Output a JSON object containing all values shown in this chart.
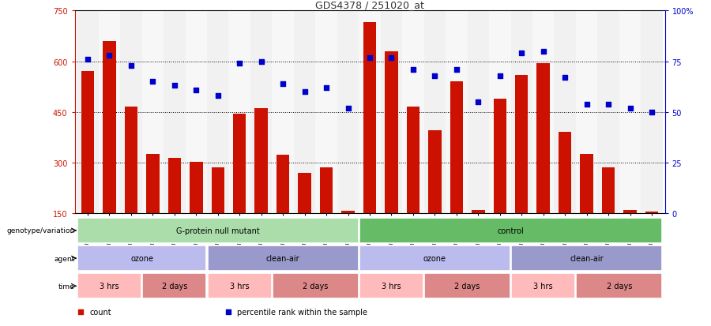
{
  "title": "GDS4378 / 251020_at",
  "samples": [
    "GSM852932",
    "GSM852933",
    "GSM852934",
    "GSM852946",
    "GSM852947",
    "GSM852948",
    "GSM852949",
    "GSM852929",
    "GSM852930",
    "GSM852931",
    "GSM852943",
    "GSM852944",
    "GSM852945",
    "GSM852926",
    "GSM852927",
    "GSM852928",
    "GSM852939",
    "GSM852940",
    "GSM852941",
    "GSM852942",
    "GSM852923",
    "GSM852924",
    "GSM852925",
    "GSM852935",
    "GSM852936",
    "GSM852937",
    "GSM852938"
  ],
  "counts": [
    570,
    660,
    465,
    325,
    315,
    303,
    285,
    445,
    462,
    323,
    270,
    285,
    157,
    715,
    630,
    465,
    395,
    540,
    160,
    490,
    560,
    595,
    390,
    325,
    285,
    160,
    155
  ],
  "percentiles": [
    76,
    78,
    73,
    65,
    63,
    61,
    58,
    74,
    75,
    64,
    60,
    62,
    52,
    77,
    77,
    71,
    68,
    71,
    55,
    68,
    79,
    80,
    67,
    54,
    54,
    52,
    50
  ],
  "ymin": 150,
  "ymax": 750,
  "yticks": [
    150,
    300,
    450,
    600,
    750
  ],
  "pct_yticks": [
    0,
    25,
    50,
    75,
    100
  ],
  "bar_color": "#cc1100",
  "dot_color": "#0000cc",
  "background_color": "#ffffff",
  "title_color": "#333333",
  "genotype_groups": [
    {
      "label": "G-protein null mutant",
      "start": 0,
      "end": 13,
      "color": "#aaddaa"
    },
    {
      "label": "control",
      "start": 13,
      "end": 27,
      "color": "#66bb66"
    }
  ],
  "agent_groups": [
    {
      "label": "ozone",
      "start": 0,
      "end": 6,
      "color": "#bbbbee"
    },
    {
      "label": "clean-air",
      "start": 6,
      "end": 13,
      "color": "#9999cc"
    },
    {
      "label": "ozone",
      "start": 13,
      "end": 20,
      "color": "#bbbbee"
    },
    {
      "label": "clean-air",
      "start": 20,
      "end": 27,
      "color": "#9999cc"
    }
  ],
  "time_groups": [
    {
      "label": "3 hrs",
      "start": 0,
      "end": 3,
      "color": "#ffbbbb"
    },
    {
      "label": "2 days",
      "start": 3,
      "end": 6,
      "color": "#dd8888"
    },
    {
      "label": "3 hrs",
      "start": 6,
      "end": 9,
      "color": "#ffbbbb"
    },
    {
      "label": "2 days",
      "start": 9,
      "end": 13,
      "color": "#dd8888"
    },
    {
      "label": "3 hrs",
      "start": 13,
      "end": 16,
      "color": "#ffbbbb"
    },
    {
      "label": "2 days",
      "start": 16,
      "end": 20,
      "color": "#dd8888"
    },
    {
      "label": "3 hrs",
      "start": 20,
      "end": 23,
      "color": "#ffbbbb"
    },
    {
      "label": "2 days",
      "start": 23,
      "end": 27,
      "color": "#dd8888"
    }
  ],
  "row_labels": [
    "genotype/variation",
    "agent",
    "time"
  ],
  "legend_items": [
    {
      "label": "count",
      "color": "#cc1100"
    },
    {
      "label": "percentile rank within the sample",
      "color": "#0000cc"
    }
  ],
  "grid_pcts": [
    25,
    50,
    75,
    100
  ]
}
